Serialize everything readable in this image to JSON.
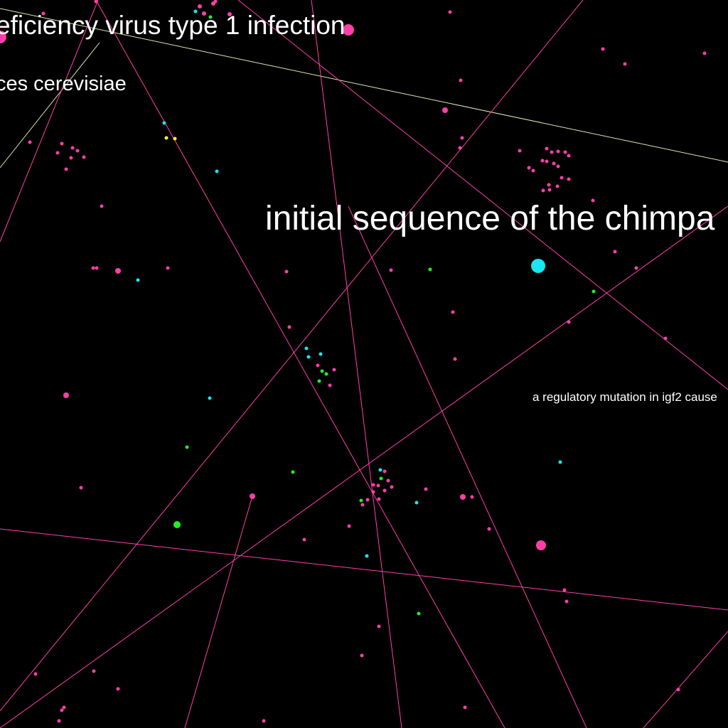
{
  "labels": {
    "hiv": "eficiency virus type 1 infection",
    "saccharomyces": "ces cerevisiae",
    "chimp": "initial sequence of the chimpa",
    "igf2": "a regulatory mutation in igf2 cause"
  },
  "colors": {
    "background": "#000000",
    "label": "#ffffff",
    "edge_pink": "#ff3fa8",
    "edge_pale": "#d8e8b0",
    "node_pink": "#ff3fa8",
    "node_cyan": "#19e6f0",
    "node_green": "#22ee22",
    "node_yellow": "#f5f520"
  }
}
